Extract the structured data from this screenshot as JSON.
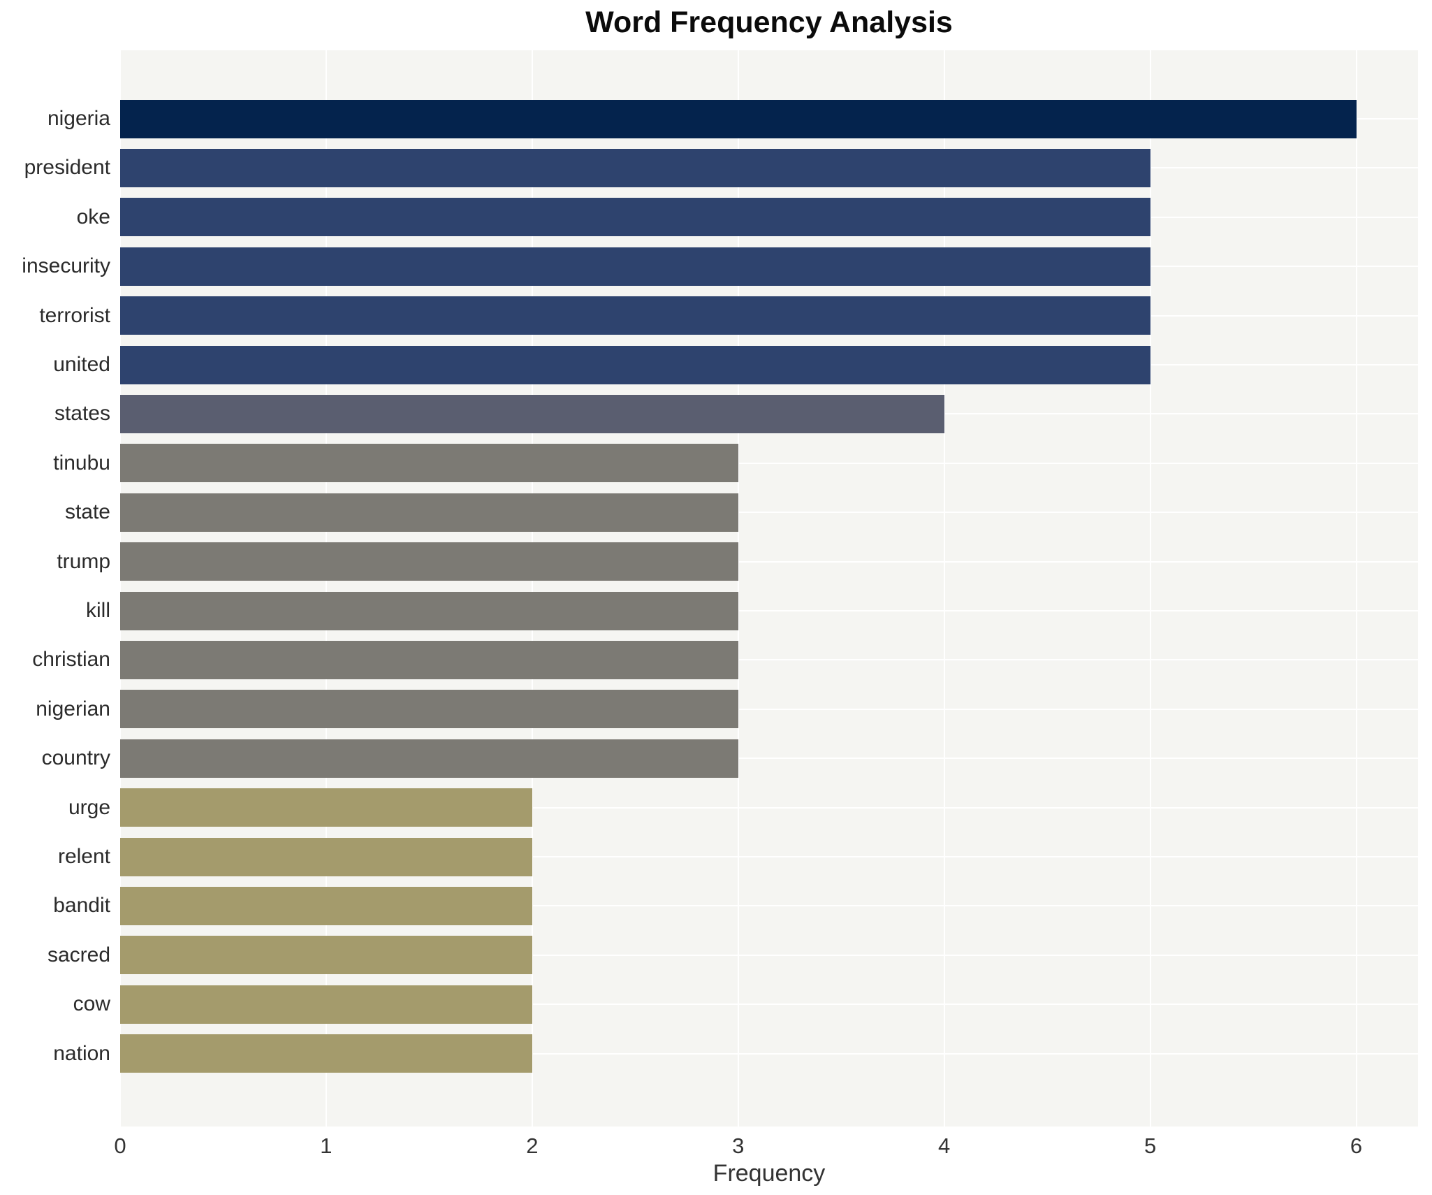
{
  "title": "Word Frequency Analysis",
  "chart_data": {
    "type": "bar",
    "orientation": "horizontal",
    "title": "Word Frequency Analysis",
    "xlabel": "Frequency",
    "ylabel": "",
    "categories": [
      "nigeria",
      "president",
      "oke",
      "insecurity",
      "terrorist",
      "united",
      "states",
      "tinubu",
      "state",
      "trump",
      "kill",
      "christian",
      "nigerian",
      "country",
      "urge",
      "relent",
      "bandit",
      "sacred",
      "cow",
      "nation"
    ],
    "values": [
      6,
      5,
      5,
      5,
      5,
      5,
      4,
      3,
      3,
      3,
      3,
      3,
      3,
      3,
      2,
      2,
      2,
      2,
      2,
      2
    ],
    "bar_colors": [
      "#04234d",
      "#2e436e",
      "#2e436e",
      "#2e436e",
      "#2e436e",
      "#2e436e",
      "#5a5e70",
      "#7c7a74",
      "#7c7a74",
      "#7c7a74",
      "#7c7a74",
      "#7c7a74",
      "#7c7a74",
      "#7c7a74",
      "#a49b6c",
      "#a49b6c",
      "#a49b6c",
      "#a49b6c",
      "#a49b6c",
      "#a49b6c"
    ],
    "xticks": [
      "0",
      "1",
      "2",
      "3",
      "4",
      "5",
      "6"
    ],
    "xlim": [
      0,
      6.3
    ],
    "grid": true,
    "legend": false
  },
  "colors": {
    "figure_bg": "#ffffff",
    "plot_bg": "#f5f5f2",
    "grid": "#ffffff",
    "title_text": "#0b0b0b",
    "axis_text": "#333333",
    "label_text": "#2b2b2b"
  }
}
